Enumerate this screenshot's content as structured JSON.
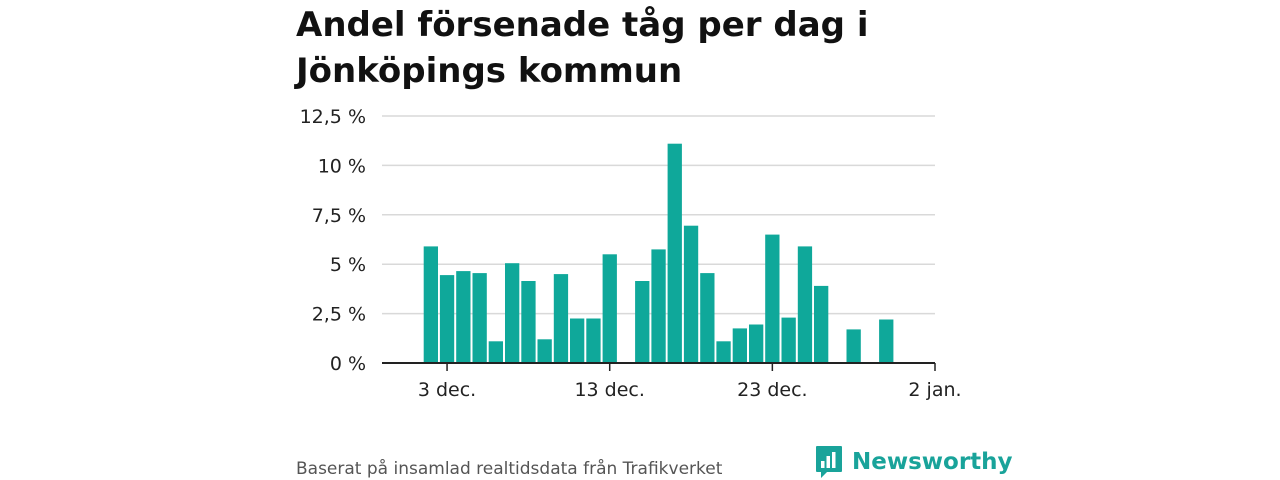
{
  "title": "Andel försenade tåg per dag i Jönköpings kommun",
  "source": "Baserat på insamlad realtidsdata från Trafikverket",
  "brand": {
    "name": "Newsworthy",
    "icon": "newsworthy-logo-icon",
    "color": "#19a39a"
  },
  "chart_data": {
    "type": "bar",
    "bar_color": "#0fa89a",
    "y_ticks": [
      "0 %",
      "2,5 %",
      "5 %",
      "7,5 %",
      "10 %",
      "12,5 %"
    ],
    "y_tick_values": [
      0,
      2.5,
      5,
      7.5,
      10,
      12.5
    ],
    "ylim": [
      0,
      12.5
    ],
    "x_ticks": [
      "3 dec.",
      "13 dec.",
      "23 dec.",
      "2 jan."
    ],
    "x_tick_dates": [
      "2023-12-03",
      "2023-12-13",
      "2023-12-23",
      "2024-01-02"
    ],
    "x_range": [
      "2023-11-29",
      "2024-01-02"
    ],
    "grid": true,
    "x": [
      "2023-12-02",
      "2023-12-03",
      "2023-12-04",
      "2023-12-05",
      "2023-12-06",
      "2023-12-07",
      "2023-12-08",
      "2023-12-09",
      "2023-12-10",
      "2023-12-11",
      "2023-12-12",
      "2023-12-13",
      "2023-12-14",
      "2023-12-15",
      "2023-12-16",
      "2023-12-17",
      "2023-12-18",
      "2023-12-19",
      "2023-12-20",
      "2023-12-21",
      "2023-12-22",
      "2023-12-23",
      "2023-12-24",
      "2023-12-25",
      "2023-12-26",
      "2023-12-27",
      "2023-12-28",
      "2023-12-29",
      "2023-12-30",
      "2023-12-31"
    ],
    "values": [
      5.9,
      4.45,
      4.65,
      4.55,
      1.1,
      5.05,
      4.15,
      1.2,
      4.5,
      2.25,
      2.25,
      5.5,
      0,
      4.15,
      5.75,
      11.1,
      6.95,
      4.55,
      1.1,
      1.75,
      1.95,
      6.5,
      2.3,
      5.9,
      3.9,
      0,
      1.7,
      0,
      2.2,
      0
    ]
  }
}
